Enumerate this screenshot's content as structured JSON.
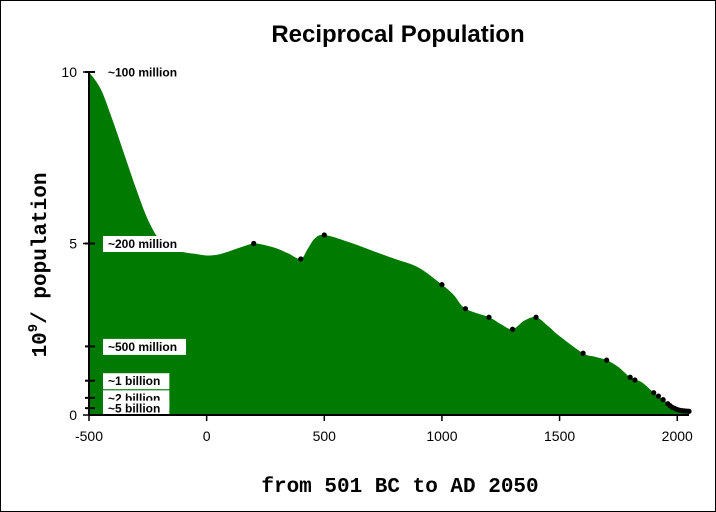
{
  "chart_data": {
    "type": "area",
    "title": "Reciprocal Population",
    "xlabel": "from 501 BC to AD 2050",
    "ylabel_base": "10",
    "ylabel_exp": "9",
    "ylabel_rest": "/ population",
    "xlim": [
      -500,
      2050
    ],
    "ylim": [
      0,
      10
    ],
    "x_ticks": [
      -500,
      0,
      500,
      1000,
      1500,
      2000
    ],
    "x_tick_labels": [
      "-500",
      "0",
      "500",
      "1000",
      "1500",
      "2000"
    ],
    "y_ticks": [
      0,
      5,
      10
    ],
    "y_tick_labels": [
      "0",
      "5",
      "10"
    ],
    "fill_color": "#007a00",
    "marker_color": "#000000",
    "series": [
      {
        "points": [
          [
            -500,
            10.0
          ],
          [
            -450,
            9.5
          ],
          [
            -400,
            8.6
          ],
          [
            -350,
            7.6
          ],
          [
            -300,
            6.6
          ],
          [
            -250,
            5.7
          ],
          [
            -200,
            5.1
          ],
          [
            -150,
            4.85
          ],
          [
            -100,
            4.75
          ],
          [
            -50,
            4.7
          ],
          [
            0,
            4.65
          ],
          [
            50,
            4.68
          ],
          [
            100,
            4.78
          ],
          [
            150,
            4.9
          ],
          [
            200,
            5.0
          ],
          [
            250,
            4.95
          ],
          [
            300,
            4.85
          ],
          [
            350,
            4.7
          ],
          [
            400,
            4.55
          ],
          [
            430,
            4.85
          ],
          [
            460,
            5.15
          ],
          [
            500,
            5.25
          ],
          [
            600,
            5.05
          ],
          [
            700,
            4.8
          ],
          [
            800,
            4.55
          ],
          [
            900,
            4.3
          ],
          [
            1000,
            3.8
          ],
          [
            1050,
            3.5
          ],
          [
            1100,
            3.1
          ],
          [
            1200,
            2.85
          ],
          [
            1250,
            2.65
          ],
          [
            1300,
            2.5
          ],
          [
            1350,
            2.75
          ],
          [
            1400,
            2.85
          ],
          [
            1450,
            2.6
          ],
          [
            1500,
            2.3
          ],
          [
            1600,
            1.8
          ],
          [
            1650,
            1.7
          ],
          [
            1700,
            1.6
          ],
          [
            1750,
            1.4
          ],
          [
            1800,
            1.1
          ],
          [
            1850,
            0.95
          ],
          [
            1900,
            0.65
          ],
          [
            1930,
            0.5
          ],
          [
            1950,
            0.4
          ],
          [
            1960,
            0.33
          ],
          [
            1970,
            0.27
          ],
          [
            1980,
            0.22
          ],
          [
            1990,
            0.19
          ],
          [
            2000,
            0.16
          ],
          [
            2010,
            0.14
          ],
          [
            2020,
            0.13
          ],
          [
            2030,
            0.12
          ],
          [
            2050,
            0.11
          ]
        ],
        "markers": [
          [
            200,
            5.0
          ],
          [
            400,
            4.55
          ],
          [
            500,
            5.25
          ],
          [
            1000,
            3.8
          ],
          [
            1100,
            3.1
          ],
          [
            1200,
            2.85
          ],
          [
            1300,
            2.5
          ],
          [
            1400,
            2.85
          ],
          [
            1600,
            1.8
          ],
          [
            1700,
            1.6
          ],
          [
            1800,
            1.1
          ],
          [
            1820,
            1.02
          ],
          [
            1900,
            0.65
          ],
          [
            1920,
            0.55
          ],
          [
            1940,
            0.45
          ],
          [
            1960,
            0.33
          ],
          [
            1970,
            0.27
          ],
          [
            1980,
            0.22
          ],
          [
            1990,
            0.19
          ],
          [
            2000,
            0.16
          ],
          [
            2010,
            0.14
          ],
          [
            2020,
            0.13
          ],
          [
            2030,
            0.12
          ],
          [
            2040,
            0.115
          ],
          [
            2050,
            0.11
          ]
        ]
      }
    ],
    "annotations": [
      {
        "text": "~100 million",
        "y": 10
      },
      {
        "text": "~200 million",
        "y": 5
      },
      {
        "text": "~500 million",
        "y": 2
      },
      {
        "text": "~1 billion",
        "y": 1
      },
      {
        "text": "~2 billion",
        "y": 0.5
      },
      {
        "text": "~5 billion",
        "y": 0.2
      }
    ]
  }
}
